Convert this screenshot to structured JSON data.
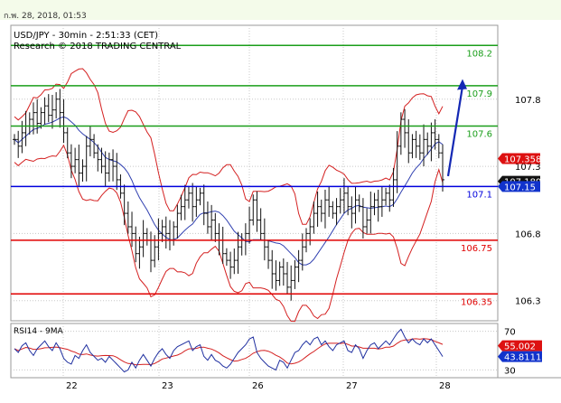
{
  "header": {
    "timestamp": "ก.พ. 28, 2018, 01:53",
    "title": "USD/JPY - 30min - 2:51:33 (CET)",
    "subtitle": "Research © 2018 TRADING CENTRAL"
  },
  "chart_data": [
    {
      "type": "candlestick",
      "name": "price",
      "title": "USD/JPY - 30min - 2:51:33 (CET)",
      "subtitle": "Research © 2018 TRADING CENTRAL",
      "ylim": [
        106.15,
        108.35
      ],
      "y_ticks": [
        "107.8",
        "107.3",
        "106.8",
        "106.3"
      ],
      "x_ticks": [
        "22",
        "23",
        "26",
        "27",
        "28"
      ],
      "grid": true,
      "levels": [
        {
          "label": "108.2",
          "value": 108.2,
          "color": "#1a9e1a",
          "kind": "resistance"
        },
        {
          "label": "107.9",
          "value": 107.9,
          "color": "#1a9e1a",
          "kind": "resistance"
        },
        {
          "label": "107.6",
          "value": 107.6,
          "color": "#1a9e1a",
          "kind": "resistance"
        },
        {
          "label": "107.1",
          "value": 107.15,
          "color": "#0000dd",
          "kind": "pivot"
        },
        {
          "label": "106.75",
          "value": 106.75,
          "color": "#e00000",
          "kind": "support"
        },
        {
          "label": "106.35",
          "value": 106.35,
          "color": "#e00000",
          "kind": "support"
        }
      ],
      "badges": [
        {
          "label": "107.358",
          "value": 107.358,
          "bg": "#dd1111",
          "fg": "#ffffff"
        },
        {
          "label": "107.189",
          "value": 107.189,
          "bg": "#111111",
          "fg": "#ffffff"
        },
        {
          "label": "107.15",
          "value": 107.15,
          "bg": "#1133cc",
          "fg": "#ffffff"
        }
      ],
      "closes": [
        107.5,
        107.45,
        107.55,
        107.6,
        107.65,
        107.7,
        107.62,
        107.7,
        107.75,
        107.68,
        107.72,
        107.8,
        107.7,
        107.55,
        107.4,
        107.3,
        107.35,
        107.25,
        107.3,
        107.45,
        107.5,
        107.4,
        107.35,
        107.3,
        107.25,
        107.35,
        107.3,
        107.2,
        107.1,
        106.95,
        106.85,
        106.8,
        106.65,
        106.7,
        106.8,
        106.75,
        106.6,
        106.7,
        106.8,
        106.85,
        106.8,
        106.75,
        106.85,
        106.95,
        107.0,
        107.05,
        107.1,
        107.0,
        107.05,
        107.1,
        106.95,
        106.85,
        106.9,
        106.8,
        106.75,
        106.65,
        106.6,
        106.55,
        106.6,
        106.7,
        106.75,
        106.8,
        106.9,
        107.05,
        106.9,
        106.8,
        106.7,
        106.6,
        106.5,
        106.45,
        106.55,
        106.5,
        106.4,
        106.45,
        106.55,
        106.6,
        106.7,
        106.8,
        106.85,
        106.95,
        107.0,
        106.95,
        107.05,
        107.0,
        106.95,
        107.0,
        107.05,
        107.1,
        107.0,
        106.95,
        107.05,
        107.0,
        106.85,
        106.9,
        107.0,
        107.05,
        107.0,
        107.05,
        107.1,
        107.05,
        107.2,
        107.45,
        107.65,
        107.55,
        107.4,
        107.5,
        107.45,
        107.4,
        107.5,
        107.45,
        107.55,
        107.5,
        107.4,
        107.2
      ],
      "ma_bands": "Bollinger envelope and moving average overlay (red bands, blue average)",
      "forecast_arrow_to": 107.95
    },
    {
      "type": "line",
      "name": "RSI14 - 9MA",
      "title": "RSI14 - 9MA",
      "ylim": [
        22,
        78
      ],
      "y_ticks": [
        "70",
        "30"
      ],
      "badges": [
        {
          "label": "55.002",
          "value": 55.002,
          "bg": "#dd1111",
          "fg": "#ffffff"
        },
        {
          "label": "43.8111",
          "value": 43.8111,
          "bg": "#1133cc",
          "fg": "#ffffff"
        }
      ],
      "rsi": [
        52,
        48,
        55,
        58,
        50,
        45,
        52,
        56,
        60,
        54,
        50,
        58,
        52,
        42,
        38,
        36,
        45,
        42,
        50,
        56,
        48,
        44,
        40,
        42,
        38,
        44,
        40,
        36,
        32,
        28,
        30,
        38,
        32,
        40,
        46,
        40,
        34,
        42,
        48,
        52,
        46,
        42,
        50,
        54,
        56,
        58,
        60,
        50,
        54,
        56,
        44,
        40,
        46,
        40,
        38,
        34,
        32,
        36,
        42,
        48,
        52,
        56,
        62,
        64,
        48,
        42,
        38,
        34,
        32,
        30,
        40,
        38,
        32,
        40,
        48,
        50,
        56,
        60,
        56,
        62,
        64,
        56,
        60,
        54,
        50,
        56,
        58,
        60,
        50,
        48,
        56,
        52,
        42,
        50,
        56,
        58,
        52,
        56,
        60,
        56,
        62,
        68,
        72,
        64,
        58,
        62,
        58,
        56,
        62,
        58,
        62,
        56,
        50,
        43.8
      ]
    }
  ]
}
